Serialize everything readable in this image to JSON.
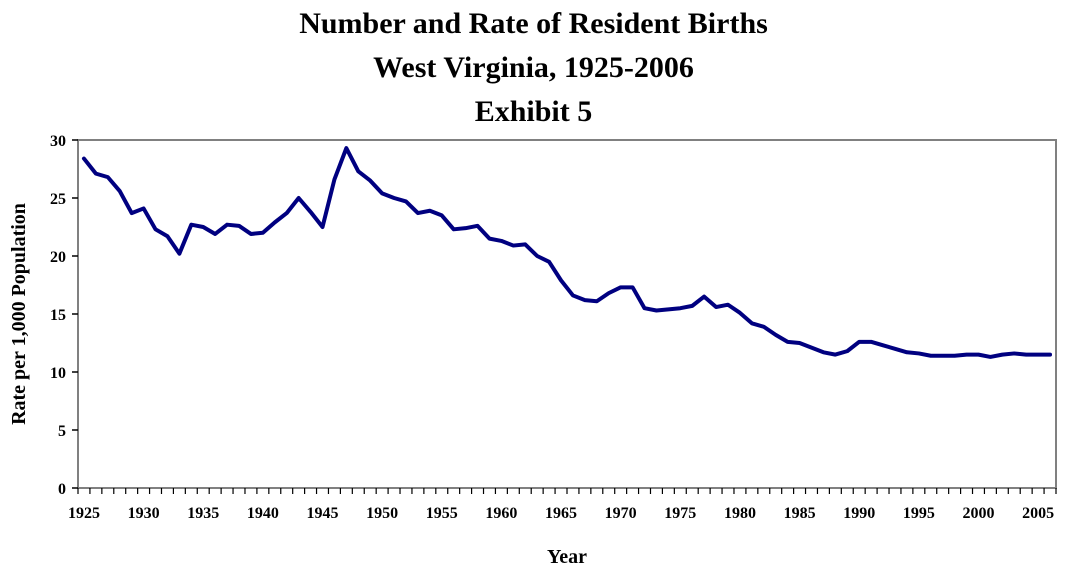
{
  "chart_data": {
    "type": "line",
    "title_lines": [
      "Number and Rate of Resident Births",
      "West Virginia, 1925-2006",
      "Exhibit 5"
    ],
    "xlabel": "Year",
    "ylabel": "Rate per 1,000 Population",
    "xlim": [
      1925,
      2006
    ],
    "ylim": [
      0,
      30
    ],
    "yticks": [
      0,
      5,
      10,
      15,
      20,
      25,
      30
    ],
    "xtick_labels": [
      "1925",
      "1930",
      "1935",
      "1940",
      "1945",
      "1950",
      "1955",
      "1960",
      "1965",
      "1970",
      "1975",
      "1980",
      "1985",
      "1990",
      "1995",
      "2000",
      "2005"
    ],
    "grid": false,
    "legend": "none",
    "line_color": "#000080",
    "series": [
      {
        "x": [
          1925,
          1926,
          1927,
          1928,
          1929,
          1930,
          1931,
          1932,
          1933,
          1934,
          1935,
          1936,
          1937,
          1938,
          1939,
          1940,
          1941,
          1942,
          1943,
          1944,
          1945,
          1946,
          1947,
          1948,
          1949,
          1950,
          1951,
          1952,
          1953,
          1954,
          1955,
          1956,
          1957,
          1958,
          1959,
          1960,
          1961,
          1962,
          1963,
          1964,
          1965,
          1966,
          1967,
          1968,
          1969,
          1970,
          1971,
          1972,
          1973,
          1974,
          1975,
          1976,
          1977,
          1978,
          1979,
          1980,
          1981,
          1982,
          1983,
          1984,
          1985,
          1986,
          1987,
          1988,
          1989,
          1990,
          1991,
          1992,
          1993,
          1994,
          1995,
          1996,
          1997,
          1998,
          1999,
          2000,
          2001,
          2002,
          2003,
          2004,
          2005,
          2006
        ],
        "values": [
          28.4,
          27.1,
          26.8,
          25.6,
          23.7,
          24.1,
          22.3,
          21.7,
          20.2,
          22.7,
          22.5,
          21.9,
          22.7,
          22.6,
          21.9,
          22.0,
          22.9,
          23.7,
          25.0,
          23.8,
          22.5,
          26.6,
          29.3,
          27.3,
          26.5,
          25.4,
          25.0,
          24.7,
          23.7,
          23.9,
          23.5,
          22.3,
          22.4,
          22.6,
          21.5,
          21.3,
          20.9,
          21.0,
          20.0,
          19.5,
          17.9,
          16.6,
          16.2,
          16.1,
          16.8,
          17.3,
          17.3,
          15.5,
          15.3,
          15.4,
          15.5,
          15.7,
          16.5,
          15.6,
          15.8,
          15.1,
          14.2,
          13.9,
          13.2,
          12.6,
          12.5,
          12.1,
          11.7,
          11.5,
          11.8,
          12.6,
          12.6,
          12.3,
          12.0,
          11.7,
          11.6,
          11.4,
          11.4,
          11.4,
          11.5,
          11.5,
          11.3,
          11.5,
          11.6,
          11.5,
          11.5,
          11.5
        ]
      }
    ]
  }
}
